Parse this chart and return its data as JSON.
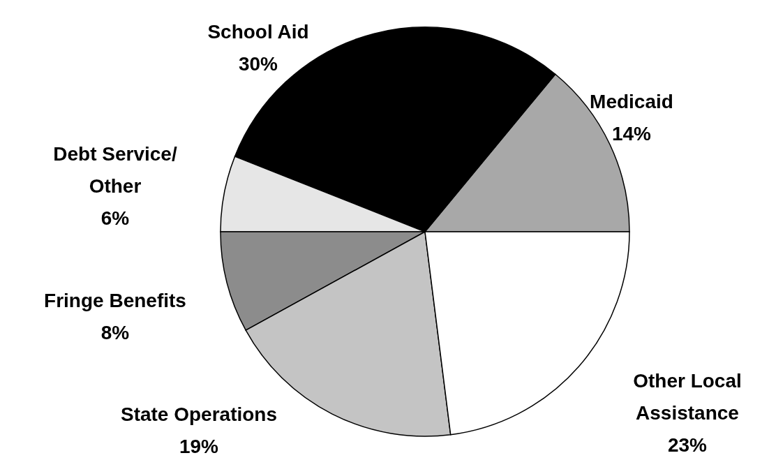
{
  "chart_data": {
    "type": "pie",
    "categories": [
      "Medicaid",
      "School Aid",
      "Debt Service/ Other",
      "Fringe Benefits",
      "State Operations",
      "Other Local Assistance"
    ],
    "values": [
      14,
      30,
      6,
      8,
      19,
      23
    ],
    "colors": [
      "#a8a8a8",
      "#000000",
      "#e6e6e6",
      "#8c8c8c",
      "#c4c4c4",
      "#ffffff"
    ],
    "value_labels": [
      "14%",
      "30%",
      "6%",
      "8%",
      "19%",
      "23%"
    ],
    "legend": false
  }
}
